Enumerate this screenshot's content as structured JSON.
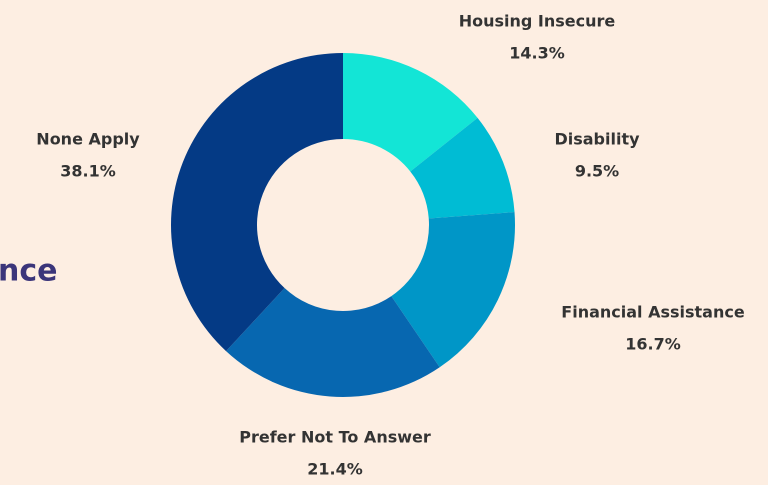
{
  "chart_data": {
    "type": "donut",
    "heading": "nce",
    "categories": [
      "Housing Insecure",
      "Disability",
      "Financial Assistance",
      "Prefer Not To Answer",
      "None Apply"
    ],
    "values": [
      14.3,
      9.5,
      16.7,
      21.4,
      38.1
    ],
    "value_labels": [
      "14.3%",
      "9.5%",
      "16.7%",
      "21.4%",
      "38.1%"
    ],
    "colors": [
      "#13e5d6",
      "#00bcd4",
      "#0096c7",
      "#0767b0",
      "#043a85"
    ]
  }
}
